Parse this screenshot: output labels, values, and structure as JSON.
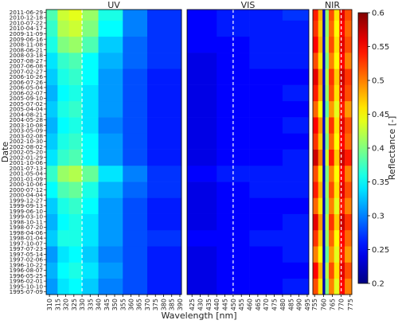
{
  "chart_data": [
    {
      "type": "heatmap",
      "title": "UV",
      "ylabel": "Date",
      "y": [
        "1995-07-09",
        "1995-10-10",
        "1996-02-01",
        "1996-05-25",
        "1996-08-07",
        "1996-10-22",
        "1997-02-06",
        "1997-05-14",
        "1997-07-23",
        "1997-10-07",
        "1998-01-04",
        "1998-04-06",
        "1998-07-20",
        "1998-10-11",
        "1999-03-10",
        "1999-06-10",
        "1999-09-13",
        "1999-12-27",
        "2000-04-04",
        "2000-07-12",
        "2000-10-06",
        "2001-01-09",
        "2001-05-04",
        "2001-07-13",
        "2001-10-06",
        "2002-01-29",
        "2002-05-20",
        "2002-08-02",
        "2002-10-30",
        "2003-02-08",
        "2003-05-09",
        "2003-10-08",
        "2004-05-28",
        "2004-08-21",
        "2005-04-04",
        "2005-07-02",
        "2005-09-10",
        "2006-02-07",
        "2006-05-04",
        "2006-07-26",
        "2006-10-26",
        "2007-02-27",
        "2007-06-08",
        "2007-08-27",
        "2008-03-18",
        "2008-06-21",
        "2008-11-08",
        "2009-06-16",
        "2009-11-09",
        "2010-04-17",
        "2010-07-22",
        "2010-12-18",
        "2011-06-29"
      ],
      "ylim": [
        -0.5,
        52.5
      ],
      "y_edges": [
        -0.5,
        2.5,
        5.5,
        8.5,
        11.5,
        14.5,
        17.5,
        20.5,
        23.5,
        26.5,
        29.5,
        32.5,
        35.5,
        38.5,
        41.5,
        44.5,
        47.5,
        50.5,
        52.5
      ],
      "xlim": [
        308,
        391
      ],
      "xticks": [
        310,
        315,
        320,
        325,
        330,
        335,
        340,
        345,
        350,
        355,
        360,
        365,
        370,
        375,
        380,
        385,
        390
      ],
      "x_edges": [
        308,
        315,
        322,
        330,
        340,
        355,
        370,
        391
      ],
      "vline": 330,
      "z": [
        [
          0.31,
          0.34,
          0.35,
          0.33,
          0.3,
          0.28,
          0.26
        ],
        [
          0.32,
          0.35,
          0.36,
          0.34,
          0.31,
          0.28,
          0.26
        ],
        [
          0.31,
          0.34,
          0.35,
          0.33,
          0.3,
          0.28,
          0.26
        ],
        [
          0.33,
          0.36,
          0.36,
          0.34,
          0.31,
          0.28,
          0.27
        ],
        [
          0.32,
          0.35,
          0.36,
          0.34,
          0.31,
          0.28,
          0.26
        ],
        [
          0.33,
          0.36,
          0.37,
          0.35,
          0.31,
          0.28,
          0.26
        ],
        [
          0.35,
          0.38,
          0.39,
          0.36,
          0.32,
          0.29,
          0.27
        ],
        [
          0.37,
          0.41,
          0.42,
          0.39,
          0.34,
          0.3,
          0.27
        ],
        [
          0.34,
          0.37,
          0.38,
          0.35,
          0.31,
          0.28,
          0.26
        ],
        [
          0.33,
          0.36,
          0.37,
          0.35,
          0.31,
          0.28,
          0.26
        ],
        [
          0.32,
          0.35,
          0.36,
          0.34,
          0.3,
          0.28,
          0.26
        ],
        [
          0.33,
          0.36,
          0.37,
          0.34,
          0.31,
          0.28,
          0.26
        ],
        [
          0.32,
          0.35,
          0.36,
          0.34,
          0.31,
          0.28,
          0.26
        ],
        [
          0.33,
          0.36,
          0.37,
          0.35,
          0.31,
          0.28,
          0.26
        ],
        [
          0.34,
          0.37,
          0.38,
          0.35,
          0.32,
          0.29,
          0.27
        ],
        [
          0.36,
          0.4,
          0.41,
          0.38,
          0.33,
          0.29,
          0.27
        ],
        [
          0.37,
          0.42,
          0.43,
          0.4,
          0.35,
          0.3,
          0.27
        ],
        [
          0.38,
          0.43,
          0.44,
          0.41,
          0.36,
          0.3,
          0.27
        ]
      ]
    },
    {
      "type": "heatmap",
      "title": "VIS",
      "xlabel": "Wavelength [nm]",
      "xlim": [
        422,
        496
      ],
      "xticks": [
        425,
        430,
        435,
        440,
        445,
        450,
        455,
        460,
        465,
        470,
        475,
        480,
        485,
        490,
        495
      ],
      "x_edges": [
        422,
        440,
        460,
        480,
        496
      ],
      "vline": 450,
      "z": [
        [
          0.24,
          0.25,
          0.25,
          0.26
        ],
        [
          0.24,
          0.25,
          0.25,
          0.25
        ],
        [
          0.24,
          0.25,
          0.25,
          0.26
        ],
        [
          0.25,
          0.25,
          0.26,
          0.26
        ],
        [
          0.24,
          0.25,
          0.25,
          0.26
        ],
        [
          0.24,
          0.25,
          0.25,
          0.25
        ],
        [
          0.24,
          0.25,
          0.26,
          0.26
        ],
        [
          0.25,
          0.26,
          0.26,
          0.26
        ],
        [
          0.24,
          0.25,
          0.25,
          0.26
        ],
        [
          0.24,
          0.25,
          0.25,
          0.25
        ],
        [
          0.24,
          0.25,
          0.25,
          0.26
        ],
        [
          0.24,
          0.25,
          0.25,
          0.25
        ],
        [
          0.24,
          0.25,
          0.25,
          0.26
        ],
        [
          0.24,
          0.25,
          0.25,
          0.25
        ],
        [
          0.24,
          0.25,
          0.26,
          0.26
        ],
        [
          0.25,
          0.25,
          0.26,
          0.26
        ],
        [
          0.25,
          0.26,
          0.26,
          0.26
        ],
        [
          0.25,
          0.26,
          0.26,
          0.27
        ]
      ]
    },
    {
      "type": "heatmap",
      "title": "NIR",
      "xlim": [
        754,
        776
      ],
      "xticks": [
        755,
        760,
        765,
        770,
        775
      ],
      "x_edges": [
        754,
        757,
        759.5,
        761,
        763,
        766,
        769,
        772,
        776
      ],
      "vline": 770,
      "colorbar": {
        "label": "Reflectance [-]",
        "colormap": "jet",
        "lim": [
          0.2,
          0.6
        ],
        "ticks": [
          0.2,
          0.25,
          0.3,
          0.35,
          0.4,
          0.45,
          0.5,
          0.55,
          0.6
        ]
      },
      "z": [
        [
          0.52,
          0.46,
          0.22,
          0.4,
          0.5,
          0.44,
          0.55,
          0.5
        ],
        [
          0.55,
          0.48,
          0.23,
          0.42,
          0.52,
          0.46,
          0.56,
          0.52
        ],
        [
          0.5,
          0.45,
          0.22,
          0.39,
          0.49,
          0.44,
          0.54,
          0.49
        ],
        [
          0.53,
          0.47,
          0.22,
          0.41,
          0.51,
          0.45,
          0.55,
          0.51
        ],
        [
          0.56,
          0.49,
          0.23,
          0.42,
          0.53,
          0.47,
          0.57,
          0.53
        ],
        [
          0.51,
          0.46,
          0.22,
          0.4,
          0.5,
          0.44,
          0.54,
          0.5
        ],
        [
          0.54,
          0.48,
          0.23,
          0.41,
          0.52,
          0.46,
          0.56,
          0.52
        ],
        [
          0.52,
          0.46,
          0.22,
          0.4,
          0.5,
          0.45,
          0.55,
          0.5
        ],
        [
          0.57,
          0.5,
          0.23,
          0.43,
          0.54,
          0.47,
          0.57,
          0.54
        ],
        [
          0.53,
          0.47,
          0.22,
          0.4,
          0.51,
          0.45,
          0.55,
          0.51
        ],
        [
          0.55,
          0.49,
          0.23,
          0.42,
          0.53,
          0.46,
          0.56,
          0.52
        ],
        [
          0.51,
          0.45,
          0.22,
          0.39,
          0.49,
          0.44,
          0.54,
          0.49
        ],
        [
          0.54,
          0.48,
          0.22,
          0.41,
          0.52,
          0.46,
          0.56,
          0.52
        ],
        [
          0.56,
          0.49,
          0.23,
          0.42,
          0.53,
          0.47,
          0.57,
          0.53
        ],
        [
          0.52,
          0.46,
          0.22,
          0.4,
          0.5,
          0.45,
          0.55,
          0.5
        ],
        [
          0.55,
          0.48,
          0.23,
          0.42,
          0.52,
          0.46,
          0.56,
          0.52
        ],
        [
          0.53,
          0.47,
          0.22,
          0.41,
          0.51,
          0.45,
          0.55,
          0.51
        ],
        [
          0.54,
          0.48,
          0.23,
          0.41,
          0.52,
          0.46,
          0.56,
          0.52
        ]
      ]
    }
  ]
}
